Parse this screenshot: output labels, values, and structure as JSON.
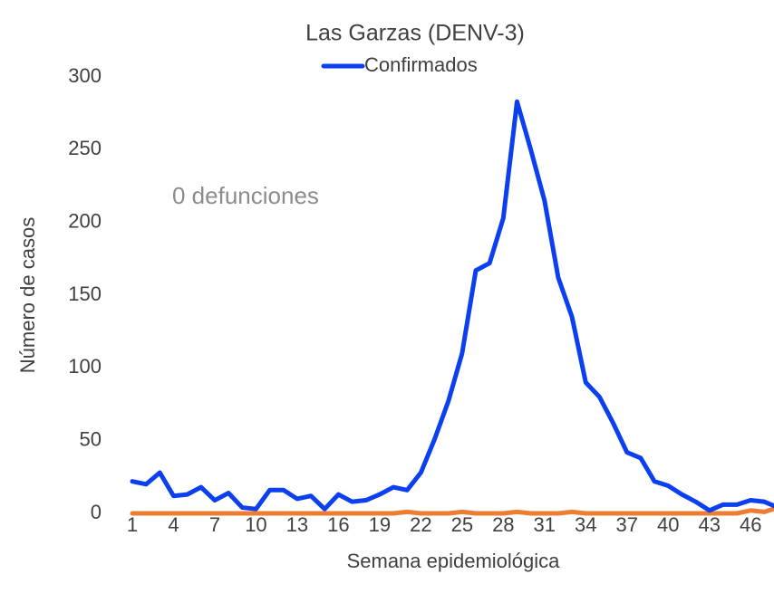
{
  "chart_data": {
    "type": "line",
    "title": "Las Garzas (DENV-3)",
    "annotation": "0 defunciones",
    "xlabel": "Semana epidemiológica",
    "ylabel": "Número de casos",
    "categories": [
      1,
      null,
      null,
      4,
      null,
      null,
      7,
      null,
      null,
      10,
      null,
      null,
      13,
      null,
      null,
      16,
      null,
      null,
      19,
      null,
      null,
      22,
      null,
      null,
      25,
      null,
      null,
      28,
      null,
      null,
      31,
      null,
      null,
      34,
      null,
      null,
      37,
      null,
      null,
      40,
      null,
      null,
      43,
      null,
      null,
      46,
      null,
      null
    ],
    "series": [
      {
        "name": "Confirmados",
        "color": "#0b3ff0",
        "values": [
          22,
          20,
          28,
          12,
          13,
          18,
          9,
          14,
          4,
          3,
          16,
          16,
          10,
          12,
          3,
          13,
          8,
          9,
          13,
          18,
          16,
          28,
          51,
          77,
          110,
          167,
          172,
          203,
          283,
          250,
          215,
          162,
          135,
          90,
          80,
          62,
          42,
          38,
          22,
          19,
          13,
          8,
          2,
          6,
          6,
          9,
          8,
          4
        ]
      },
      {
        "color": "#ed7d31",
        "values": [
          0,
          0,
          0,
          0,
          0,
          0,
          0,
          0,
          0,
          0,
          0,
          0,
          0,
          0,
          0,
          0,
          0,
          0,
          0,
          0,
          1,
          0,
          0,
          0,
          1,
          0,
          0,
          0,
          1,
          0,
          0,
          0,
          1,
          0,
          0,
          0,
          0,
          0,
          0,
          0,
          0,
          0,
          0,
          0,
          0,
          2,
          1,
          4
        ]
      }
    ],
    "ylim": [
      0,
      300
    ],
    "yticks": [
      0,
      50,
      100,
      150,
      200,
      250,
      300
    ],
    "grid": false,
    "legend": "top"
  }
}
